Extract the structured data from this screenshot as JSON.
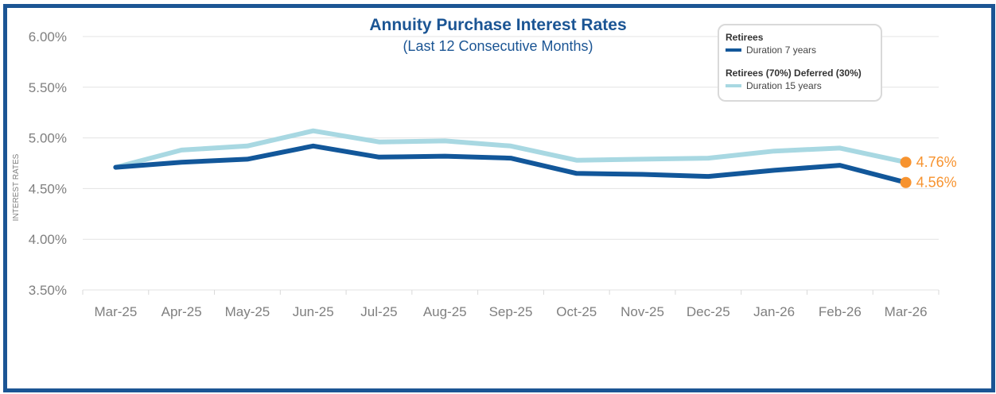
{
  "chart_data": {
    "type": "line",
    "title": "Annuity Purchase Interest Rates",
    "subtitle": "(Last 12 Consecutive Months)",
    "ylabel": "INTEREST RATES",
    "xlabel": "",
    "ylim": [
      3.5,
      6.0
    ],
    "yticks": [
      3.5,
      4.0,
      4.5,
      5.0,
      5.5,
      6.0
    ],
    "ytick_labels": [
      "3.50%",
      "4.00%",
      "4.50%",
      "5.00%",
      "5.50%",
      "6.00%"
    ],
    "grid": true,
    "legend_position": "top-right",
    "categories": [
      "Mar-25",
      "Apr-25",
      "May-25",
      "Jun-25",
      "Jul-25",
      "Aug-25",
      "Sep-25",
      "Oct-25",
      "Nov-25",
      "Dec-25",
      "Jan-26",
      "Feb-26",
      "Mar-26"
    ],
    "series": [
      {
        "name": "Retirees",
        "description": "Duration 7 years",
        "color": "#12579a",
        "values": [
          4.71,
          4.76,
          4.79,
          4.92,
          4.81,
          4.82,
          4.8,
          4.65,
          4.64,
          4.62,
          4.68,
          4.73,
          4.56
        ],
        "end_label": "4.56%"
      },
      {
        "name": "Retirees (70%) Deferred (30%)",
        "description": "Duration 15 years",
        "color": "#a8d8e2",
        "values": [
          4.71,
          4.88,
          4.92,
          5.07,
          4.96,
          4.97,
          4.92,
          4.78,
          4.79,
          4.8,
          4.87,
          4.9,
          4.76
        ],
        "end_label": "4.76%"
      }
    ],
    "end_marker_color": "#f7932f"
  }
}
